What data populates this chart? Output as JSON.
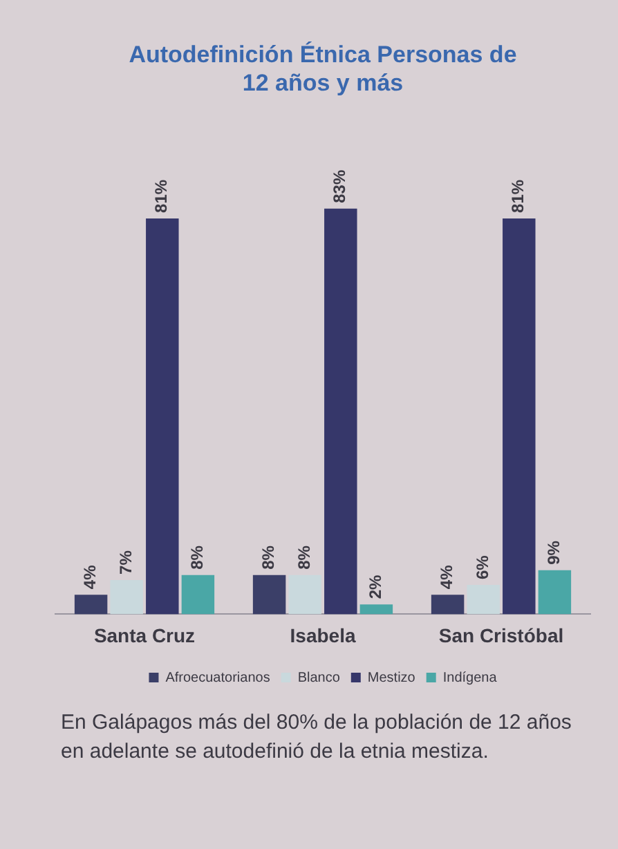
{
  "chart_data": {
    "type": "bar",
    "title": "Autodefinición Étnica Personas de 12 años y más",
    "categories": [
      "Santa Cruz",
      "Isabela",
      "San Cristóbal"
    ],
    "series": [
      {
        "name": "Afroecuatorianos",
        "color": "#3b3f68",
        "values": [
          4,
          8,
          4
        ],
        "value_labels": [
          "4%",
          "8%",
          "4%"
        ]
      },
      {
        "name": "Blanco",
        "color": "#c9d9dd",
        "values": [
          7,
          8,
          6
        ],
        "value_labels": [
          "7%",
          "8%",
          "6%"
        ]
      },
      {
        "name": "Mestizo",
        "color": "#36376a",
        "values": [
          81,
          83,
          81
        ],
        "value_labels": [
          "81%",
          "83%",
          "81%"
        ]
      },
      {
        "name": "Indígena",
        "color": "#4aa7a6",
        "values": [
          8,
          2,
          9
        ],
        "value_labels": [
          "8%",
          "2%",
          "9%"
        ]
      }
    ],
    "grid": false,
    "legend": "bottom",
    "annotations": [
      "En Galápagos  más del 80% de la población de 12 años en adelante se autodefinió de la etnia mestiza."
    ]
  }
}
